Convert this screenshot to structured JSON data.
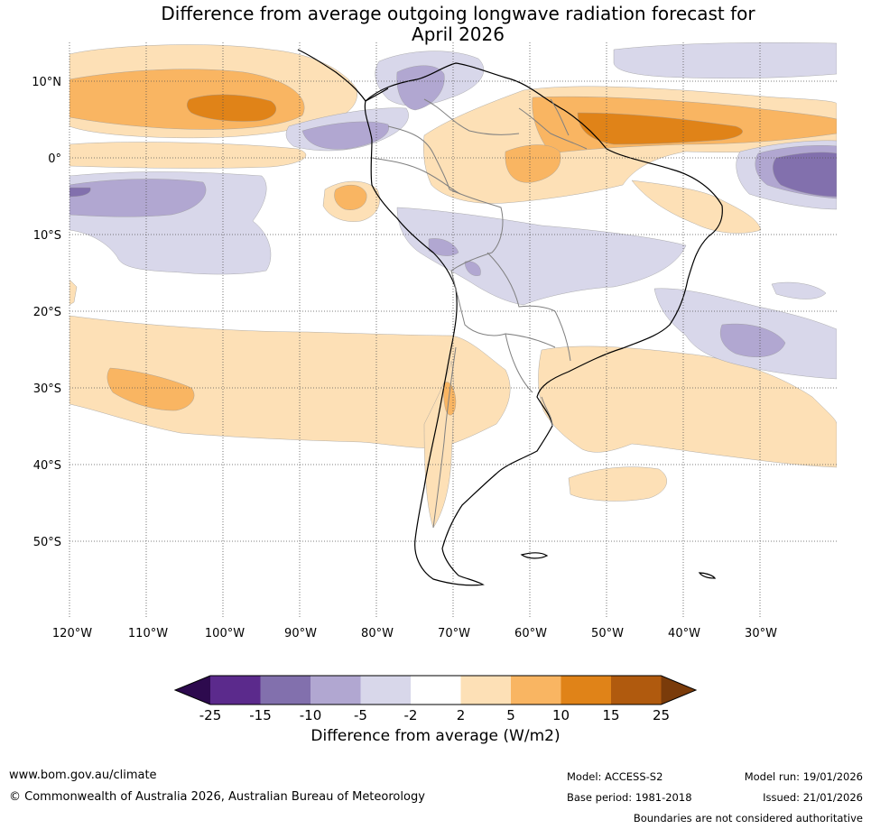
{
  "title": {
    "line1": "Difference from average outgoing longwave radiation forecast for",
    "line2": "April 2026"
  },
  "map": {
    "lat_labels": [
      "10°N",
      "0°",
      "10°S",
      "20°S",
      "30°S",
      "40°S",
      "50°S"
    ],
    "lon_labels": [
      "120°W",
      "110°W",
      "100°W",
      "90°W",
      "80°W",
      "70°W",
      "60°W",
      "50°W",
      "40°W",
      "30°W"
    ]
  },
  "colorbar": {
    "title": "Difference from average (W/m2)",
    "labels": [
      "-25",
      "-15",
      "-10",
      "-5",
      "-2",
      "2",
      "5",
      "10",
      "15",
      "25"
    ],
    "colors": [
      "#2d0a4e",
      "#5b2a8c",
      "#8270ad",
      "#b1a7d1",
      "#d8d7ea",
      "#ffffff",
      "#fde0b6",
      "#f9b562",
      "#e08318",
      "#b05a0e",
      "#7a3b0a"
    ]
  },
  "palette": {
    "pos1": "#fde0b6",
    "pos2": "#f9b562",
    "pos3": "#e08318",
    "neg1": "#d8d7ea",
    "neg2": "#b1a7d1",
    "neg3": "#8270ad"
  },
  "footer": {
    "website": "www.bom.gov.au/climate",
    "copyright": "© Commonwealth of Australia 2026, Australian Bureau of Meteorology",
    "model": "Model: ACCESS-S2",
    "base_period": "Base period: 1981-2018",
    "model_run": "Model run: 19/01/2026",
    "issued": "Issued: 21/01/2026",
    "disclaimer": "Boundaries are not considered authoritative"
  }
}
